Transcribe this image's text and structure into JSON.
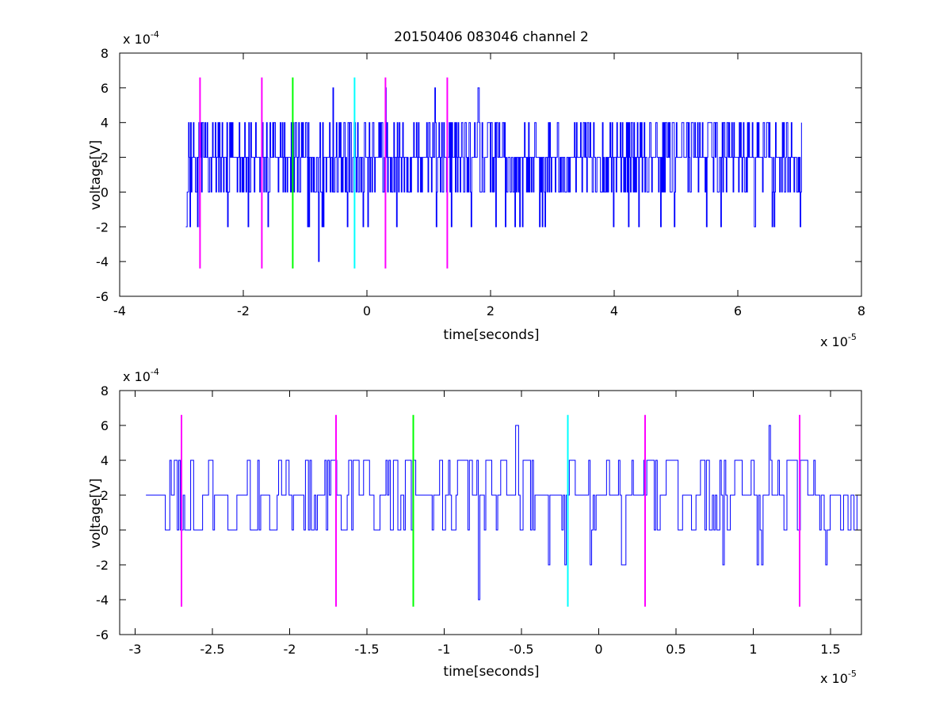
{
  "title": "20150406 083046 channel 2",
  "colors": {
    "signal": "#0000ff",
    "magenta": "#ff00ff",
    "green": "#00ff00",
    "cyan": "#00ffff",
    "axes": "#000000",
    "background": "#ffffff"
  },
  "chart_data": [
    {
      "type": "line",
      "title": "20150406 083046 channel 2",
      "xlabel": "time[seconds]",
      "ylabel": "voltage[V]",
      "x_multiplier_label": "x 10",
      "x_multiplier_exp": "-5",
      "y_multiplier_label": "x 10",
      "y_multiplier_exp": "-4",
      "xlim": [
        -4,
        8
      ],
      "ylim": [
        -6,
        8
      ],
      "xticks": [
        "-4",
        "-2",
        "0",
        "2",
        "4",
        "6",
        "8"
      ],
      "yticks": [
        "-6",
        "-4",
        "-2",
        "0",
        "2",
        "4",
        "6",
        "8"
      ],
      "grid": false,
      "signal": {
        "x_start": -2.93,
        "x_end": 7.03,
        "y_levels": [
          -2,
          0,
          2,
          4
        ],
        "typical_range": [
          0,
          4
        ],
        "spikes": [
          {
            "x": -0.78,
            "y": -4
          },
          {
            "x": 0.3,
            "y": 6
          },
          {
            "x": 1.1,
            "y": 6
          },
          {
            "x": 1.8,
            "y": 6
          },
          {
            "x": -0.55,
            "y": 6
          }
        ]
      },
      "markers": [
        {
          "x": -2.7,
          "color": "magenta",
          "ymin": -4.4,
          "ymax": 6.6
        },
        {
          "x": -1.7,
          "color": "magenta",
          "ymin": -4.4,
          "ymax": 6.6
        },
        {
          "x": -1.2,
          "color": "green",
          "ymin": -4.4,
          "ymax": 6.6
        },
        {
          "x": -0.2,
          "color": "cyan",
          "ymin": -4.4,
          "ymax": 6.6
        },
        {
          "x": 0.3,
          "color": "magenta",
          "ymin": -4.4,
          "ymax": 6.6
        },
        {
          "x": 1.3,
          "color": "magenta",
          "ymin": -4.4,
          "ymax": 6.6
        }
      ]
    },
    {
      "type": "line",
      "title": "",
      "xlabel": "time[seconds]",
      "ylabel": "voltage[V]",
      "x_multiplier_label": "x 10",
      "x_multiplier_exp": "-5",
      "y_multiplier_label": "x 10",
      "y_multiplier_exp": "-4",
      "xlim": [
        -3.1,
        1.7
      ],
      "ylim": [
        -6,
        8
      ],
      "xticks": [
        "-3",
        "-2.5",
        "-2",
        "-1.5",
        "-1",
        "-0.5",
        "0",
        "0.5",
        "1",
        "1.5"
      ],
      "xtick_values": [
        -3,
        -2.5,
        -2,
        -1.5,
        -1,
        -0.5,
        0,
        0.5,
        1,
        1.5
      ],
      "yticks": [
        "-6",
        "-4",
        "-2",
        "0",
        "2",
        "4",
        "6",
        "8"
      ],
      "grid": false,
      "signal": {
        "x_start": -2.93,
        "x_end": 1.7,
        "y_levels": [
          -2,
          0,
          2,
          4
        ],
        "typical_range": [
          0,
          4
        ],
        "spikes": [
          {
            "x": -0.78,
            "y": -4
          },
          {
            "x": -0.54,
            "y": 6
          },
          {
            "x": 1.1,
            "y": 6
          }
        ]
      },
      "markers": [
        {
          "x": -2.7,
          "color": "magenta",
          "ymin": -4.4,
          "ymax": 6.6
        },
        {
          "x": -1.7,
          "color": "magenta",
          "ymin": -4.4,
          "ymax": 6.6
        },
        {
          "x": -1.2,
          "color": "green",
          "ymin": -4.4,
          "ymax": 6.6
        },
        {
          "x": -0.2,
          "color": "cyan",
          "ymin": -4.4,
          "ymax": 6.6
        },
        {
          "x": 0.3,
          "color": "magenta",
          "ymin": -4.4,
          "ymax": 6.6
        },
        {
          "x": 1.3,
          "color": "magenta",
          "ymin": -4.4,
          "ymax": 6.6
        }
      ]
    }
  ]
}
